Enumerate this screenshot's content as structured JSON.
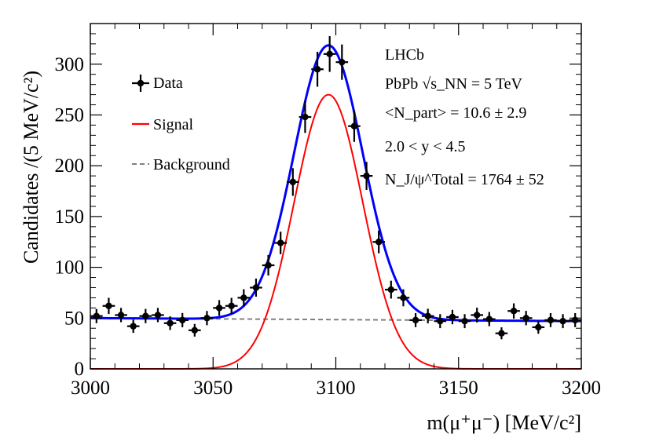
{
  "chart_data": {
    "type": "scatter",
    "title": "",
    "xlabel": "m(μ⁺μ⁻) [MeV/c²]",
    "ylabel": "Candidates /(5 MeV/c²)",
    "xlim": [
      3000,
      3200
    ],
    "ylim": [
      0,
      340
    ],
    "x_ticks": [
      3000,
      3050,
      3100,
      3150,
      3200
    ],
    "y_ticks": [
      0,
      50,
      100,
      150,
      200,
      250,
      300
    ],
    "grid": false,
    "legend_position": "top-left",
    "legend": [
      {
        "label": "Data",
        "style": "points-with-error-bars",
        "color": "#000000"
      },
      {
        "label": "Signal",
        "style": "solid-line",
        "color": "#ff0000"
      },
      {
        "label": "Background",
        "style": "dashed-line",
        "color": "#808080"
      }
    ],
    "fit_line_color": "#0000ff",
    "annotations": [
      "LHCb",
      "PbPb √s_NN = 5 TeV",
      "<N_part> = 10.6 ± 2.9",
      "2.0 < y < 4.5",
      "N_J/ψ^Total = 1764 ± 52"
    ],
    "data": {
      "x": [
        3002.5,
        3007.5,
        3012.5,
        3017.5,
        3022.5,
        3027.5,
        3032.5,
        3037.5,
        3042.5,
        3047.5,
        3052.5,
        3057.5,
        3062.5,
        3067.5,
        3072.5,
        3077.5,
        3082.5,
        3087.5,
        3092.5,
        3097.5,
        3102.5,
        3107.5,
        3112.5,
        3117.5,
        3122.5,
        3127.5,
        3132.5,
        3137.5,
        3142.5,
        3147.5,
        3152.5,
        3157.5,
        3162.5,
        3167.5,
        3172.5,
        3177.5,
        3182.5,
        3187.5,
        3192.5,
        3197.5
      ],
      "y": [
        52,
        62,
        53,
        42,
        52,
        53,
        45,
        48,
        38,
        50,
        60,
        62,
        70,
        80,
        102,
        124,
        184,
        248,
        295,
        310,
        302,
        239,
        190,
        125,
        78,
        70,
        48,
        52,
        47,
        51,
        47,
        53,
        49,
        35,
        57,
        50,
        41,
        48,
        47,
        48
      ],
      "yerr": [
        7,
        8,
        7,
        6.5,
        7,
        7,
        6.7,
        7,
        6.2,
        7,
        7.7,
        7.9,
        8.4,
        8.9,
        10.1,
        11.1,
        13.6,
        15.7,
        17.2,
        17.6,
        17.4,
        15.5,
        13.8,
        11.2,
        8.8,
        8.4,
        6.9,
        7.2,
        6.9,
        7.1,
        6.9,
        7.3,
        7,
        5.9,
        7.5,
        7.1,
        6.4,
        6.9,
        6.9,
        6.9
      ]
    },
    "model": {
      "signal": {
        "mean": 3097,
        "sigma": 14,
        "peak": 270
      },
      "background": {
        "start": 50,
        "end": 47
      }
    }
  }
}
